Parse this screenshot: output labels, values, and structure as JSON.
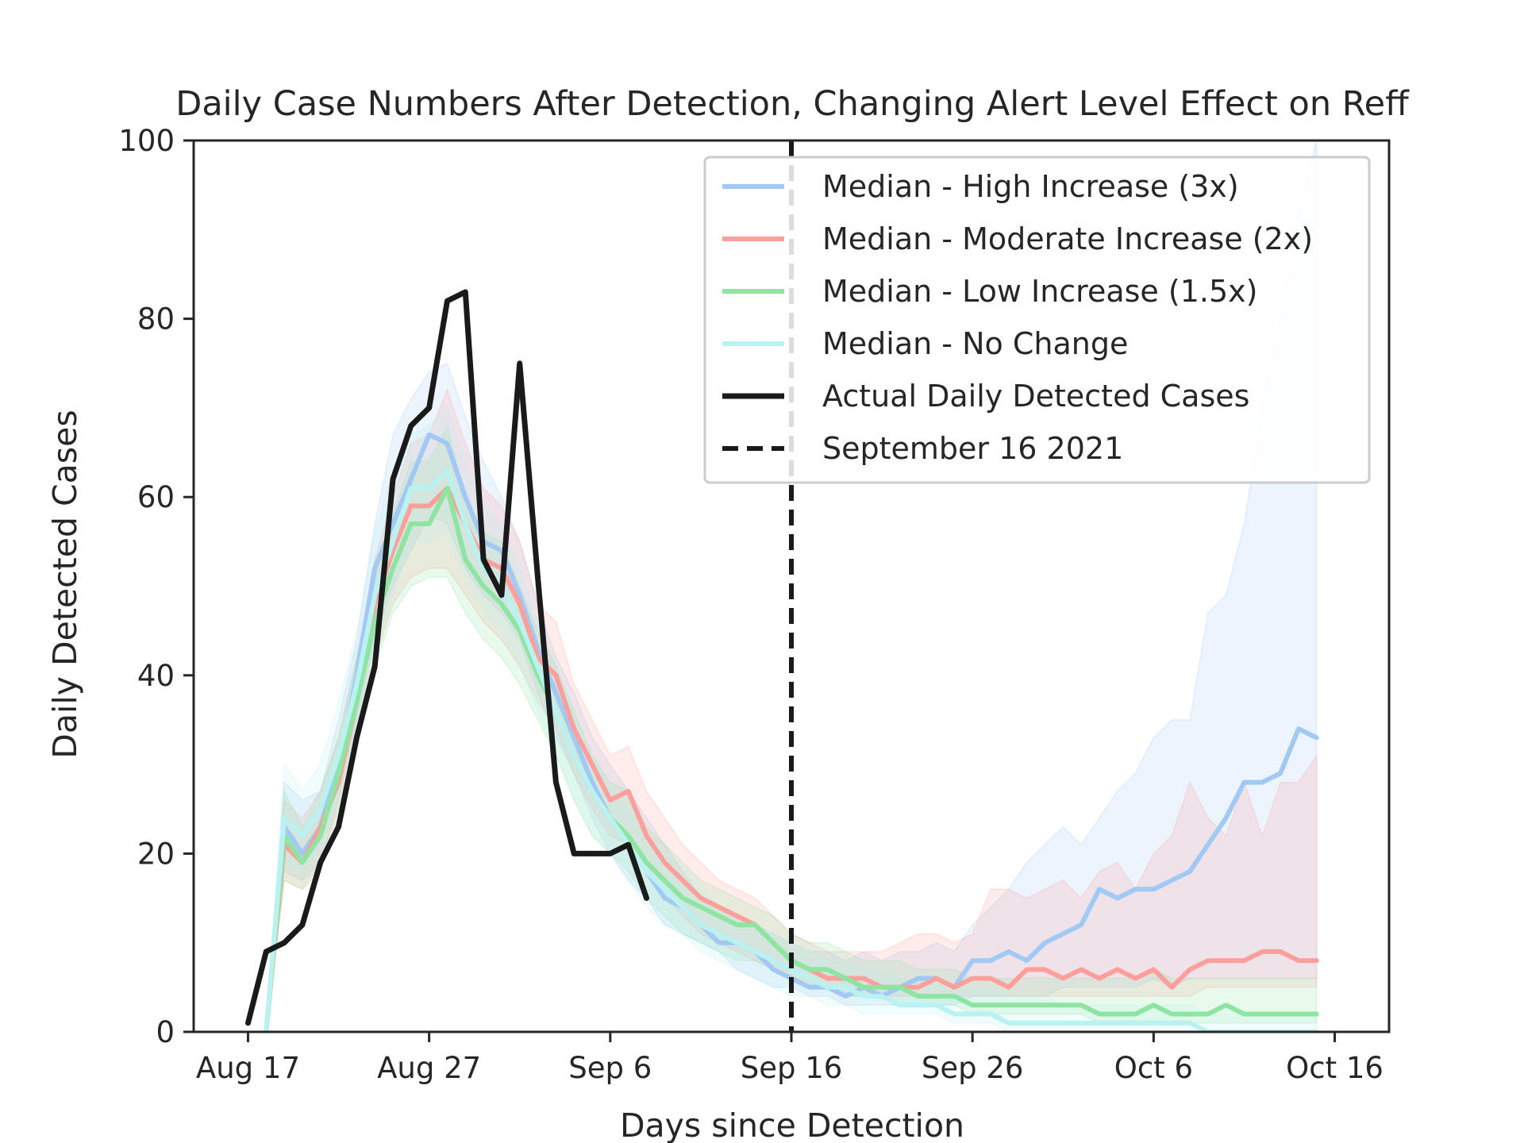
{
  "chart_data": {
    "type": "line",
    "title": "Daily Case Numbers After Detection, Changing Alert Level Effect on Reff",
    "xlabel": "Days since Detection",
    "ylabel": "Daily Detected Cases",
    "x_start": "2021-08-17",
    "xlim": [
      "2021-08-14",
      "2021-10-19"
    ],
    "ylim": [
      0,
      100
    ],
    "x_ticks": [
      {
        "date": "2021-08-17",
        "label": "Aug 17"
      },
      {
        "date": "2021-08-27",
        "label": "Aug 27"
      },
      {
        "date": "2021-09-06",
        "label": "Sep 6"
      },
      {
        "date": "2021-09-16",
        "label": "Sep 16"
      },
      {
        "date": "2021-09-26",
        "label": "Sep 26"
      },
      {
        "date": "2021-10-06",
        "label": "Oct 6"
      },
      {
        "date": "2021-10-16",
        "label": "Oct 16"
      }
    ],
    "y_ticks": [
      0,
      20,
      40,
      60,
      80,
      100
    ],
    "grid": false,
    "legend_position": "top-right",
    "vline": {
      "date": "2021-09-16",
      "label": "September 16 2021",
      "color": "#1a1a1a"
    },
    "series": [
      {
        "name": "Median - High Increase (3x)",
        "color": "#a1c9f4",
        "fill_color": "#a1c9f4",
        "start_date": "2021-08-18",
        "median": [
          0,
          23,
          20,
          23,
          30,
          40,
          52,
          57,
          62,
          67,
          66,
          60,
          55,
          54,
          49,
          43,
          38,
          33,
          28,
          24,
          21,
          18,
          15,
          14,
          12,
          10,
          10,
          9,
          7,
          6,
          5,
          5,
          4,
          5,
          4,
          5,
          6,
          6,
          5,
          8,
          8,
          9,
          8,
          10,
          11,
          12,
          16,
          15,
          16,
          16,
          17,
          18,
          21,
          24,
          28,
          28,
          29,
          34,
          33
        ],
        "lower": [
          0,
          18,
          17,
          19,
          26,
          35,
          44,
          50,
          54,
          58,
          57,
          52,
          49,
          47,
          44,
          38,
          33,
          29,
          24,
          20,
          17,
          15,
          12,
          11,
          10,
          9,
          7,
          6,
          5,
          5,
          4,
          4,
          3,
          3,
          3,
          3,
          3,
          3,
          3,
          4,
          4,
          4,
          4,
          4,
          5,
          5,
          5,
          5,
          5,
          6,
          5,
          6,
          6,
          6,
          6,
          6,
          6,
          6,
          6
        ],
        "upper": [
          0,
          28,
          26,
          27,
          35,
          44,
          57,
          67,
          71,
          74,
          75,
          69,
          64,
          60,
          55,
          48,
          42,
          38,
          33,
          30,
          27,
          24,
          21,
          18,
          15,
          14,
          13,
          12,
          11,
          10,
          9,
          9,
          8,
          9,
          8,
          9,
          9,
          10,
          9,
          12,
          14,
          16,
          19,
          21,
          23,
          21,
          24,
          27,
          29,
          33,
          35,
          35,
          47,
          49,
          57,
          70,
          80,
          92,
          100
        ]
      },
      {
        "name": "Median - Moderate Increase (2x)",
        "color": "#ff9f9b",
        "fill_color": "#ff9f9b",
        "start_date": "2021-08-18",
        "median": [
          0,
          21,
          19,
          23,
          28,
          37,
          48,
          54,
          59,
          59,
          61,
          57,
          53,
          52,
          48,
          42,
          40,
          34,
          30,
          26,
          27,
          22,
          19,
          17,
          15,
          14,
          13,
          12,
          10,
          8,
          7,
          6,
          6,
          6,
          5,
          5,
          5,
          6,
          5,
          6,
          6,
          5,
          7,
          7,
          6,
          7,
          6,
          7,
          6,
          7,
          5,
          7,
          8,
          8,
          8,
          9,
          9,
          8,
          8
        ],
        "lower": [
          0,
          17,
          16,
          18,
          24,
          32,
          42,
          48,
          51,
          52,
          52,
          49,
          46,
          44,
          41,
          37,
          34,
          29,
          25,
          22,
          21,
          18,
          15,
          13,
          11,
          10,
          9,
          8,
          7,
          6,
          5,
          5,
          4,
          4,
          4,
          4,
          4,
          4,
          4,
          4,
          4,
          4,
          4,
          4,
          4,
          4,
          4,
          4,
          4,
          4,
          4,
          4,
          5,
          5,
          5,
          5,
          5,
          5,
          5
        ],
        "upper": [
          0,
          26,
          24,
          27,
          33,
          42,
          53,
          60,
          66,
          67,
          72,
          66,
          61,
          59,
          55,
          48,
          46,
          39,
          35,
          31,
          32,
          27,
          24,
          21,
          19,
          17,
          16,
          15,
          13,
          11,
          10,
          9,
          9,
          9,
          9,
          10,
          11,
          11,
          10,
          11,
          16,
          16,
          15,
          16,
          17,
          15,
          18,
          19,
          16,
          20,
          22,
          28,
          24,
          22,
          28,
          22,
          28,
          28,
          31
        ]
      },
      {
        "name": "Median - Low Increase (1.5x)",
        "color": "#8de5a1",
        "fill_color": "#8de5a1",
        "start_date": "2021-08-18",
        "median": [
          0,
          22,
          19,
          22,
          29,
          37,
          46,
          52,
          57,
          57,
          61,
          53,
          50,
          48,
          45,
          40,
          36,
          31,
          27,
          24,
          22,
          19,
          17,
          15,
          14,
          13,
          12,
          12,
          10,
          8,
          7,
          7,
          6,
          5,
          5,
          5,
          4,
          4,
          4,
          3,
          3,
          3,
          3,
          3,
          3,
          3,
          2,
          2,
          2,
          3,
          2,
          2,
          2,
          3,
          2,
          2,
          2,
          2,
          2
        ],
        "lower": [
          0,
          17,
          16,
          19,
          25,
          33,
          41,
          47,
          50,
          51,
          51,
          47,
          44,
          42,
          39,
          35,
          31,
          26,
          22,
          20,
          18,
          15,
          13,
          11,
          10,
          9,
          8,
          8,
          7,
          6,
          5,
          5,
          4,
          4,
          4,
          3,
          3,
          3,
          3,
          2,
          2,
          2,
          2,
          2,
          2,
          2,
          1,
          1,
          1,
          1,
          1,
          1,
          1,
          1,
          1,
          1,
          1,
          1,
          1
        ],
        "upper": [
          0,
          27,
          23,
          27,
          33,
          42,
          51,
          58,
          64,
          64,
          68,
          60,
          56,
          55,
          50,
          45,
          41,
          36,
          31,
          28,
          27,
          23,
          21,
          19,
          17,
          16,
          15,
          14,
          13,
          11,
          10,
          10,
          9,
          8,
          8,
          8,
          7,
          7,
          7,
          6,
          6,
          6,
          6,
          6,
          6,
          6,
          6,
          6,
          6,
          7,
          6,
          6,
          6,
          6,
          6,
          6,
          6,
          6,
          6
        ]
      },
      {
        "name": "Median - No Change",
        "color": "#b9f2f0",
        "fill_color": "#b9f2f0",
        "start_date": "2021-08-18",
        "median": [
          0,
          24,
          22,
          25,
          31,
          39,
          49,
          55,
          61,
          61,
          63,
          57,
          52,
          50,
          46,
          41,
          36,
          31,
          27,
          24,
          21,
          18,
          16,
          14,
          12,
          11,
          10,
          9,
          8,
          7,
          6,
          5,
          5,
          4,
          4,
          3,
          3,
          3,
          2,
          2,
          2,
          1,
          1,
          1,
          1,
          1,
          1,
          1,
          1,
          1,
          1,
          1,
          0,
          0,
          0,
          0,
          0,
          0,
          0
        ],
        "lower": [
          0,
          19,
          18,
          21,
          27,
          34,
          43,
          49,
          55,
          55,
          56,
          51,
          47,
          45,
          41,
          36,
          31,
          26,
          22,
          20,
          17,
          14,
          12,
          11,
          9,
          8,
          7,
          6,
          5,
          4,
          4,
          3,
          3,
          2,
          2,
          2,
          2,
          2,
          1,
          1,
          1,
          0,
          0,
          0,
          0,
          0,
          0,
          0,
          0,
          0,
          0,
          0,
          0,
          0,
          0,
          0,
          0,
          0,
          0
        ],
        "upper": [
          0,
          30,
          27,
          30,
          37,
          45,
          56,
          63,
          67,
          68,
          70,
          64,
          59,
          57,
          52,
          46,
          41,
          36,
          31,
          28,
          25,
          22,
          20,
          18,
          16,
          14,
          13,
          12,
          11,
          10,
          9,
          8,
          8,
          7,
          7,
          6,
          6,
          6,
          5,
          5,
          5,
          4,
          4,
          4,
          3,
          3,
          3,
          3,
          3,
          3,
          3,
          3,
          2,
          2,
          2,
          2,
          2,
          2,
          2
        ]
      },
      {
        "name": "Actual Daily Detected Cases",
        "color": "#1a1a1a",
        "start_date": "2021-08-17",
        "values": [
          1,
          9,
          10,
          12,
          19,
          23,
          33,
          41,
          62,
          68,
          70,
          82,
          83,
          53,
          49,
          75,
          51,
          28,
          20,
          20,
          20,
          21,
          15
        ]
      }
    ]
  }
}
